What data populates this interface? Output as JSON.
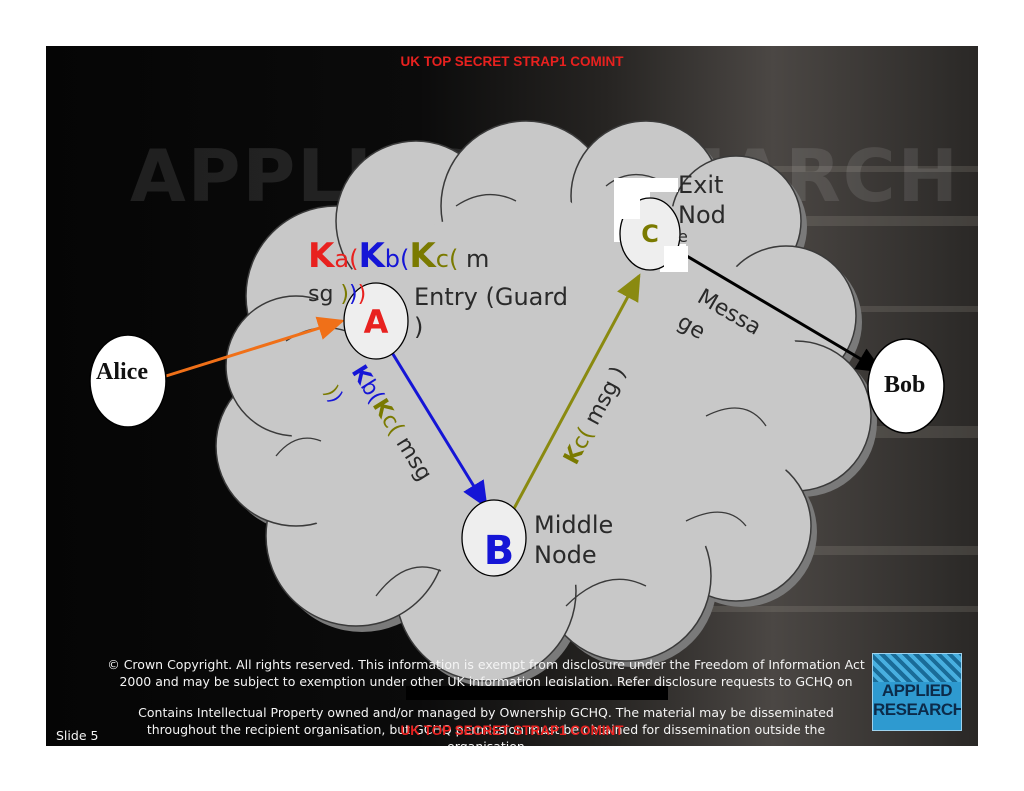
{
  "classification_top": "UK  TOP SECRET STRAP1 COMINT",
  "classification_bottom": "UK  TOP SECRET STRAP1 COMINT",
  "background_title": "APPLIED RESEARCH",
  "nodes": {
    "alice": "Alice",
    "bob": "Bob",
    "a": "A",
    "b": "B",
    "c": "C"
  },
  "labels": {
    "entry_line1": "Entry (Guard",
    "entry_line2": ")",
    "middle_line1": "Middle",
    "middle_line2": "Node",
    "exit_line1": "Exit",
    "exit_line2": "Nod",
    "exit_line3": "e"
  },
  "layer_a": {
    "k1": "K",
    "s1": "a(",
    "k2": "K",
    "s2": "b(",
    "k3": "K",
    "s3": "c(",
    "tail": " m",
    "line2": "sg ",
    "close1": ")",
    "close2": ")",
    "close3": ")"
  },
  "layer_b": {
    "k1": "K",
    "s1": "b(",
    "k2": "K",
    "s2": "c(",
    "tail": " msg",
    "close1": ")",
    "close2": ")"
  },
  "layer_c": {
    "k": "K",
    "s": "c(",
    "tail": " msg )"
  },
  "message_line1": "Messa",
  "message_line2": "ge",
  "copyright_line1": "© Crown Copyright. All rights reserved. This information is exempt from disclosure under the Freedom of Information Act",
  "copyright_line2": "2000 and may be subject to exemption under other UK information legislation. Refer disclosure requests to GCHQ on",
  "ip_line1": "Contains Intellectual Property owned and/or managed by Ownership GCHQ. The material may be disseminated",
  "ip_line2": "throughout the recipient organisation, but GCHQ permission must be obtained for dissemination outside the",
  "ip_line3": "organisation",
  "slide_number": "Slide 5",
  "logo_line1": "APPLIED",
  "logo_line2": "RESEARCH",
  "colors": {
    "classification": "#e8211f",
    "key_a": "#e8211f",
    "key_b": "#1515d6",
    "key_c": "#7a7a00",
    "arrow_alice": "#f07018",
    "arrow_bob": "#000000",
    "cloud": "#c8c8c8"
  }
}
